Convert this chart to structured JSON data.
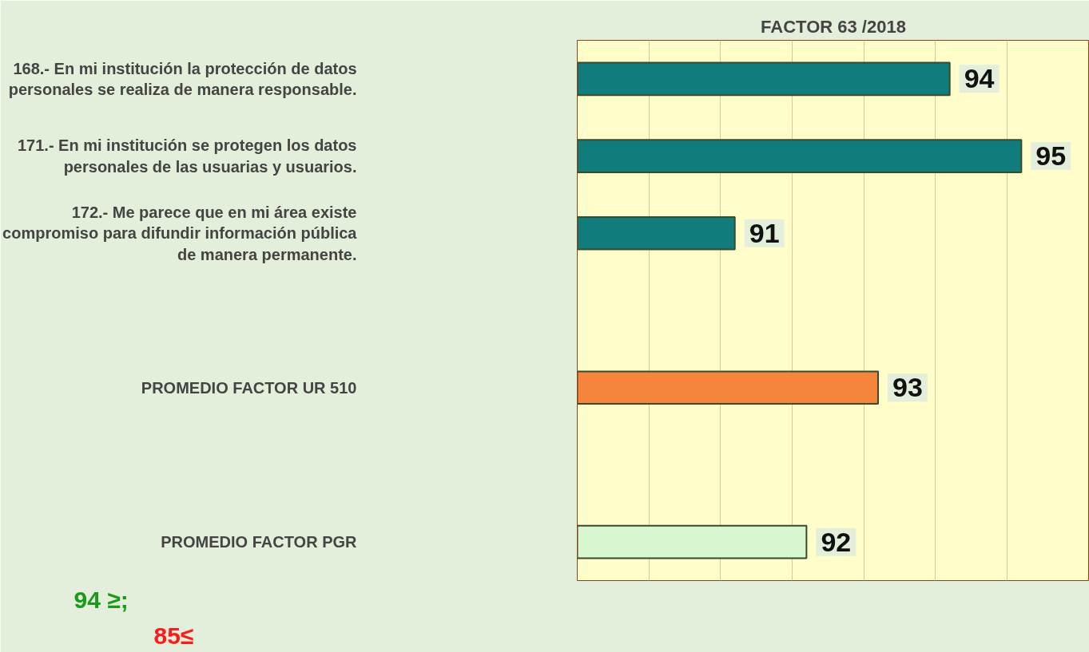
{
  "chart_data": {
    "type": "bar",
    "orientation": "horizontal",
    "title": "FACTOR 63 /2018",
    "categories": [
      "168.- En mi institución la protección de datos personales se realiza de manera responsable.",
      "171.- En mi institución se protegen los datos personales de las usuarias y usuarios.",
      "172.- Me parece que en mi área existe compromiso para difundir información pública de manera permanente.",
      null,
      "PROMEDIO FACTOR UR 510",
      null,
      "PROMEDIO FACTOR PGR"
    ],
    "values": [
      94,
      95,
      91,
      null,
      93,
      null,
      92
    ],
    "colors": [
      "#117c7c",
      "#117c7c",
      "#117c7c",
      "#117c7c",
      "#f5843c",
      "#117c7c",
      "#d6f7cf"
    ],
    "data_labels": true,
    "xlim": [
      88.8,
      95.95
    ],
    "xticks": [
      {
        "value": 89.8,
        "label": null
      },
      {
        "value": 90.8,
        "label": null
      },
      {
        "value": 91.8,
        "label": null
      },
      {
        "value": 92.8,
        "label": null
      },
      {
        "value": 93.8,
        "label": null
      },
      {
        "value": 94.8,
        "label": null
      }
    ],
    "grid": "x",
    "tick_labels": "y",
    "annotations": [
      "94 ≥;",
      "85≤"
    ]
  }
}
